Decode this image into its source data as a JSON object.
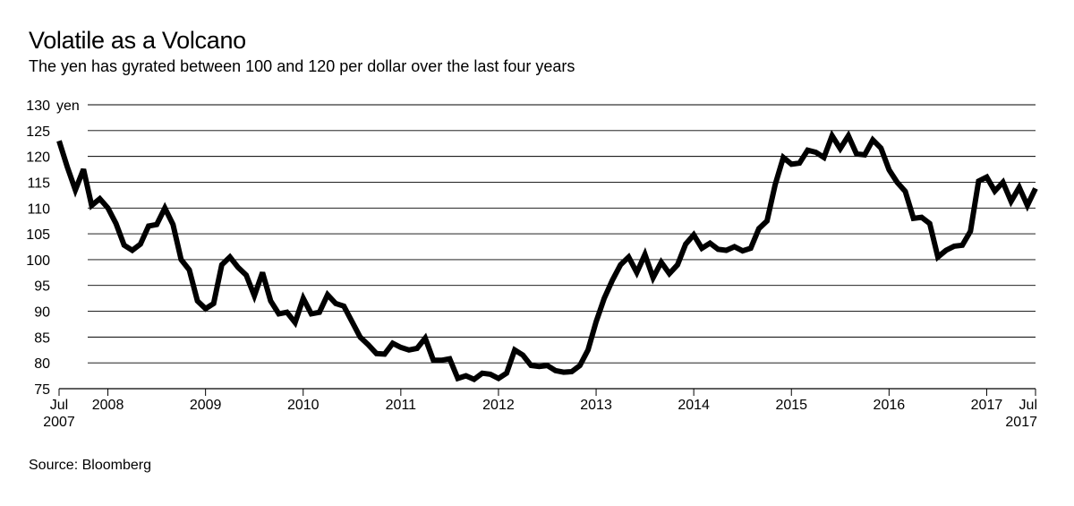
{
  "chart_data": {
    "type": "line",
    "title": "Volatile as a Volcano",
    "subtitle": "The yen has gyrated between 100 and 120 per dollar over the last four years",
    "source": "Source: Bloomberg",
    "ylabel_unit": "yen",
    "ylim": [
      75,
      130
    ],
    "yticks": [
      75,
      80,
      85,
      90,
      95,
      100,
      105,
      110,
      115,
      120,
      125,
      130
    ],
    "x_start": 2007.5,
    "x_end": 2017.5,
    "xticks": [
      {
        "value": 2007.5,
        "line1": "Jul",
        "line2": "2007"
      },
      {
        "value": 2008,
        "line1": "2008",
        "line2": ""
      },
      {
        "value": 2009,
        "line1": "2009",
        "line2": ""
      },
      {
        "value": 2010,
        "line1": "2010",
        "line2": ""
      },
      {
        "value": 2011,
        "line1": "2011",
        "line2": ""
      },
      {
        "value": 2012,
        "line1": "2012",
        "line2": ""
      },
      {
        "value": 2013,
        "line1": "2013",
        "line2": ""
      },
      {
        "value": 2014,
        "line1": "2014",
        "line2": ""
      },
      {
        "value": 2015,
        "line1": "2015",
        "line2": ""
      },
      {
        "value": 2016,
        "line1": "2016",
        "line2": ""
      },
      {
        "value": 2017,
        "line1": "2017",
        "line2": ""
      },
      {
        "value": 2017.5,
        "line1": "Jul",
        "line2": "2017"
      }
    ],
    "series": [
      {
        "name": "Yen per dollar",
        "frequency": "monthly",
        "start": 2007.5,
        "values": [
          123.0,
          118.0,
          113.5,
          117.5,
          110.5,
          111.8,
          110.0,
          107.0,
          102.8,
          101.8,
          103.0,
          106.5,
          106.8,
          110.0,
          106.8,
          100.0,
          98.0,
          92.0,
          90.5,
          91.5,
          99.0,
          100.5,
          98.5,
          97.0,
          93.0,
          97.5,
          92.0,
          89.5,
          89.8,
          87.8,
          92.5,
          89.5,
          89.8,
          93.2,
          91.5,
          91.0,
          88.0,
          85.0,
          83.5,
          81.8,
          81.7,
          83.8,
          83.0,
          82.5,
          82.8,
          84.8,
          80.5,
          80.5,
          80.8,
          77.0,
          77.5,
          76.8,
          78.0,
          77.8,
          77.0,
          78.0,
          82.5,
          81.5,
          79.5,
          79.3,
          79.5,
          78.5,
          78.2,
          78.3,
          79.5,
          82.5,
          88.0,
          92.5,
          96.0,
          99.0,
          100.5,
          97.5,
          101.0,
          96.5,
          99.5,
          97.3,
          99.0,
          103.0,
          104.8,
          102.2,
          103.2,
          102.0,
          101.8,
          102.5,
          101.7,
          102.2,
          106.0,
          107.5,
          114.5,
          119.8,
          118.5,
          118.7,
          121.2,
          120.8,
          119.8,
          124.0,
          121.5,
          124.0,
          120.5,
          120.3,
          123.2,
          121.6,
          117.4,
          115.0,
          113.2,
          108.0,
          108.2,
          107.0,
          100.5,
          101.8,
          102.6,
          102.8,
          105.5,
          115.2,
          116.0,
          113.3,
          115.0,
          111.3,
          114.0,
          110.5,
          113.8
        ]
      }
    ]
  }
}
